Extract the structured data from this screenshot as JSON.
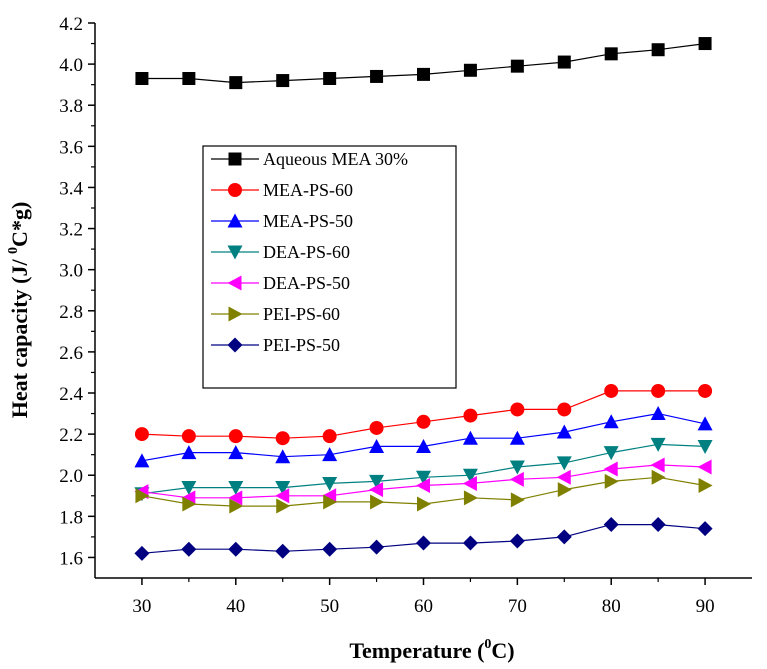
{
  "chart_data": {
    "type": "line",
    "xlabel": "Temperature (",
    "xlabel_sup": "0",
    "xlabel_end": "C)",
    "ylabel": "Heat capacity (J/ ",
    "ylabel_sup": "0",
    "ylabel_end": "C*g)",
    "xlim": [
      25,
      95
    ],
    "ylim": [
      1.5,
      4.2
    ],
    "x_ticks": [
      30,
      40,
      50,
      60,
      70,
      80,
      90
    ],
    "y_ticks": [
      "1.6",
      "1.8",
      "2.0",
      "2.2",
      "2.4",
      "2.6",
      "2.8",
      "3.0",
      "3.2",
      "3.4",
      "3.6",
      "3.8",
      "4.0",
      "4.2"
    ],
    "grid": false,
    "legend_position": "middle-left",
    "x": [
      30,
      35,
      40,
      45,
      50,
      55,
      60,
      65,
      70,
      75,
      80,
      85,
      90
    ],
    "series": [
      {
        "name": "Aqueous MEA 30%",
        "color": "#000000",
        "marker": "square",
        "values": [
          3.93,
          3.93,
          3.91,
          3.92,
          3.93,
          3.94,
          3.95,
          3.97,
          3.99,
          4.01,
          4.05,
          4.07,
          4.1
        ]
      },
      {
        "name": "MEA-PS-60",
        "color": "#ff0000",
        "marker": "circle",
        "values": [
          2.2,
          2.19,
          2.19,
          2.18,
          2.19,
          2.23,
          2.26,
          2.29,
          2.32,
          2.32,
          2.41,
          2.41,
          2.41
        ]
      },
      {
        "name": "MEA-PS-50",
        "color": "#0000ff",
        "marker": "triangle-up",
        "values": [
          2.07,
          2.11,
          2.11,
          2.09,
          2.1,
          2.14,
          2.14,
          2.18,
          2.18,
          2.21,
          2.26,
          2.3,
          2.25
        ]
      },
      {
        "name": "DEA-PS-60",
        "color": "#008080",
        "marker": "triangle-down",
        "values": [
          1.91,
          1.94,
          1.94,
          1.94,
          1.96,
          1.97,
          1.99,
          2.0,
          2.04,
          2.06,
          2.11,
          2.15,
          2.14
        ]
      },
      {
        "name": "DEA-PS-50",
        "color": "#ff00ff",
        "marker": "triangle-left",
        "values": [
          1.92,
          1.89,
          1.89,
          1.9,
          1.9,
          1.93,
          1.95,
          1.96,
          1.98,
          1.99,
          2.03,
          2.05,
          2.04
        ]
      },
      {
        "name": "PEI-PS-60",
        "color": "#808000",
        "marker": "triangle-right",
        "values": [
          1.9,
          1.86,
          1.85,
          1.85,
          1.87,
          1.87,
          1.86,
          1.89,
          1.88,
          1.93,
          1.97,
          1.99,
          1.95
        ]
      },
      {
        "name": "PEI-PS-50",
        "color": "#000080",
        "marker": "diamond",
        "values": [
          1.62,
          1.64,
          1.64,
          1.63,
          1.64,
          1.65,
          1.67,
          1.67,
          1.68,
          1.7,
          1.76,
          1.76,
          1.74
        ]
      }
    ]
  }
}
